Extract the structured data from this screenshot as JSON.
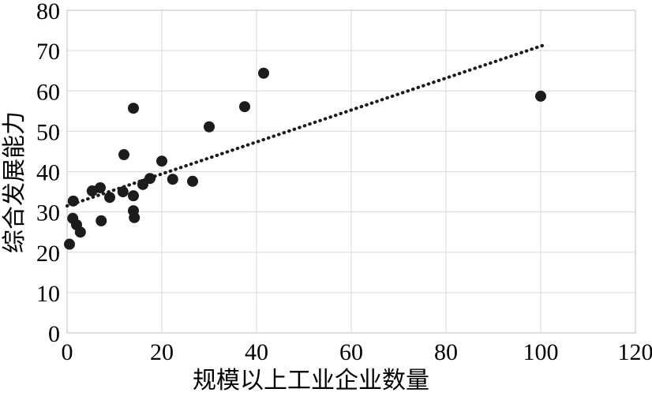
{
  "figure": {
    "background": "#ffffff"
  },
  "chart_data": {
    "type": "scatter",
    "title": "",
    "xlabel": "规模以上工业企业数量",
    "ylabel": "综合发展能力",
    "xlim": [
      0,
      120
    ],
    "ylim": [
      0,
      80
    ],
    "x_ticks": [
      0,
      20,
      40,
      60,
      80,
      100,
      120
    ],
    "y_ticks": [
      0,
      10,
      20,
      30,
      40,
      50,
      60,
      70,
      80
    ],
    "grid": true,
    "legend_position": "none",
    "marker": {
      "shape": "circle",
      "color": "#1c1c1c",
      "radius_px": 7
    },
    "points": [
      [
        0.5,
        22.0
      ],
      [
        1.3,
        32.7
      ],
      [
        1.2,
        28.4
      ],
      [
        2.0,
        26.8
      ],
      [
        2.8,
        25.0
      ],
      [
        5.3,
        35.2
      ],
      [
        7.0,
        36.0
      ],
      [
        7.2,
        27.8
      ],
      [
        9.0,
        33.6
      ],
      [
        11.8,
        35.0
      ],
      [
        12.0,
        44.2
      ],
      [
        14.0,
        55.7
      ],
      [
        14.0,
        34.0
      ],
      [
        14.0,
        30.3
      ],
      [
        14.2,
        28.6
      ],
      [
        16.0,
        36.8
      ],
      [
        17.5,
        38.3
      ],
      [
        20.0,
        42.6
      ],
      [
        22.3,
        38.1
      ],
      [
        26.5,
        37.6
      ],
      [
        30.0,
        51.1
      ],
      [
        37.5,
        56.1
      ],
      [
        41.5,
        64.4
      ],
      [
        100.0,
        58.7
      ]
    ],
    "trendline": {
      "style": "dotted",
      "color": "#1c1c1c",
      "x1": 0,
      "y1": 31.5,
      "x2": 100.5,
      "y2": 71.3
    },
    "colors": {
      "gridline": "#d9d9d9",
      "plot_border": "#bfbfbf",
      "text": "#000000"
    }
  }
}
